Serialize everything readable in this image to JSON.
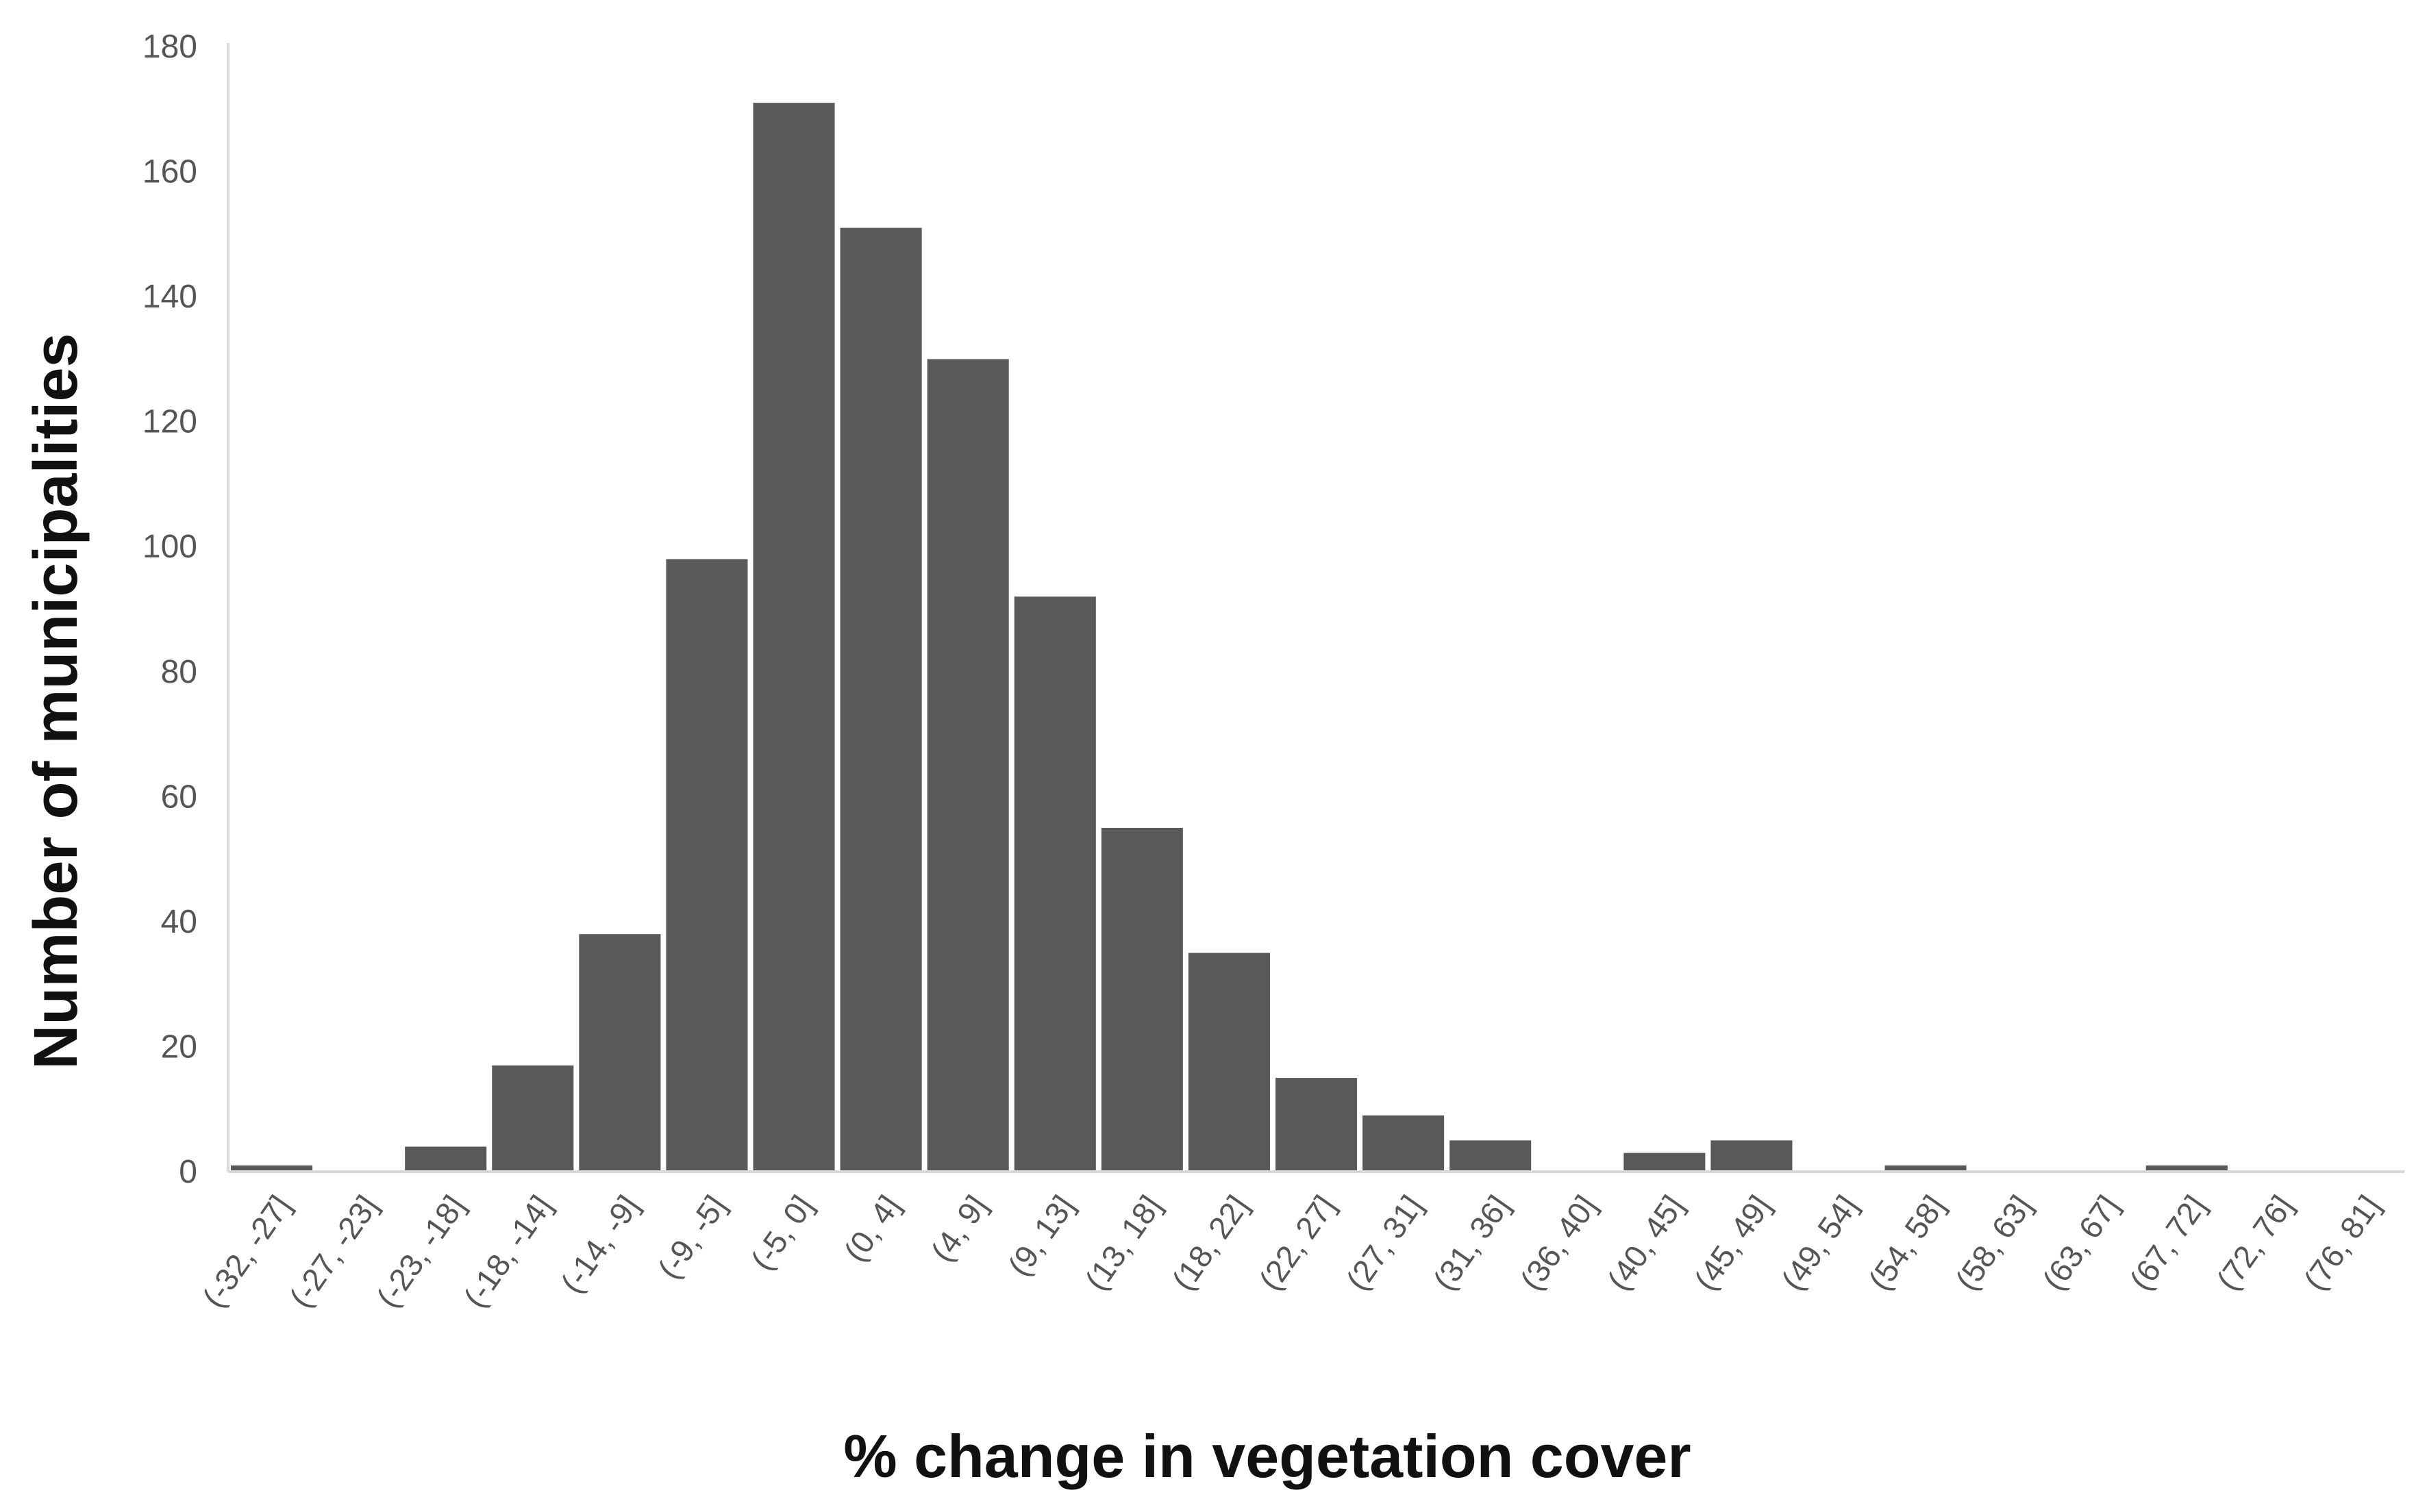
{
  "chart_data": {
    "type": "bar",
    "title": "",
    "xlabel": "% change in vegetation cover",
    "ylabel": "Number of municipalities",
    "ylim": [
      0,
      180
    ],
    "y_ticks": [
      0,
      20,
      40,
      60,
      80,
      100,
      120,
      140,
      160,
      180
    ],
    "grid": false,
    "legend": "none",
    "bar_color": "#595959",
    "categories": [
      "(-32, -27]",
      "(-27, -23]",
      "(-23, -18]",
      "(-18, -14]",
      "(-14, -9]",
      "(-9, -5]",
      "(-5, 0]",
      "(0, 4]",
      "(4, 9]",
      "(9, 13]",
      "(13, 18]",
      "(18, 22]",
      "(22, 27]",
      "(27, 31]",
      "(31, 36]",
      "(36, 40]",
      "(40, 45]",
      "(45, 49]",
      "(49, 54]",
      "(54, 58]",
      "(58, 63]",
      "(63, 67]",
      "(67, 72]",
      "(72, 76]",
      "(76, 81]"
    ],
    "values": [
      1,
      0,
      4,
      17,
      38,
      98,
      171,
      151,
      130,
      92,
      55,
      35,
      15,
      9,
      5,
      0,
      3,
      5,
      0,
      1,
      0,
      0,
      1,
      0,
      0
    ]
  }
}
